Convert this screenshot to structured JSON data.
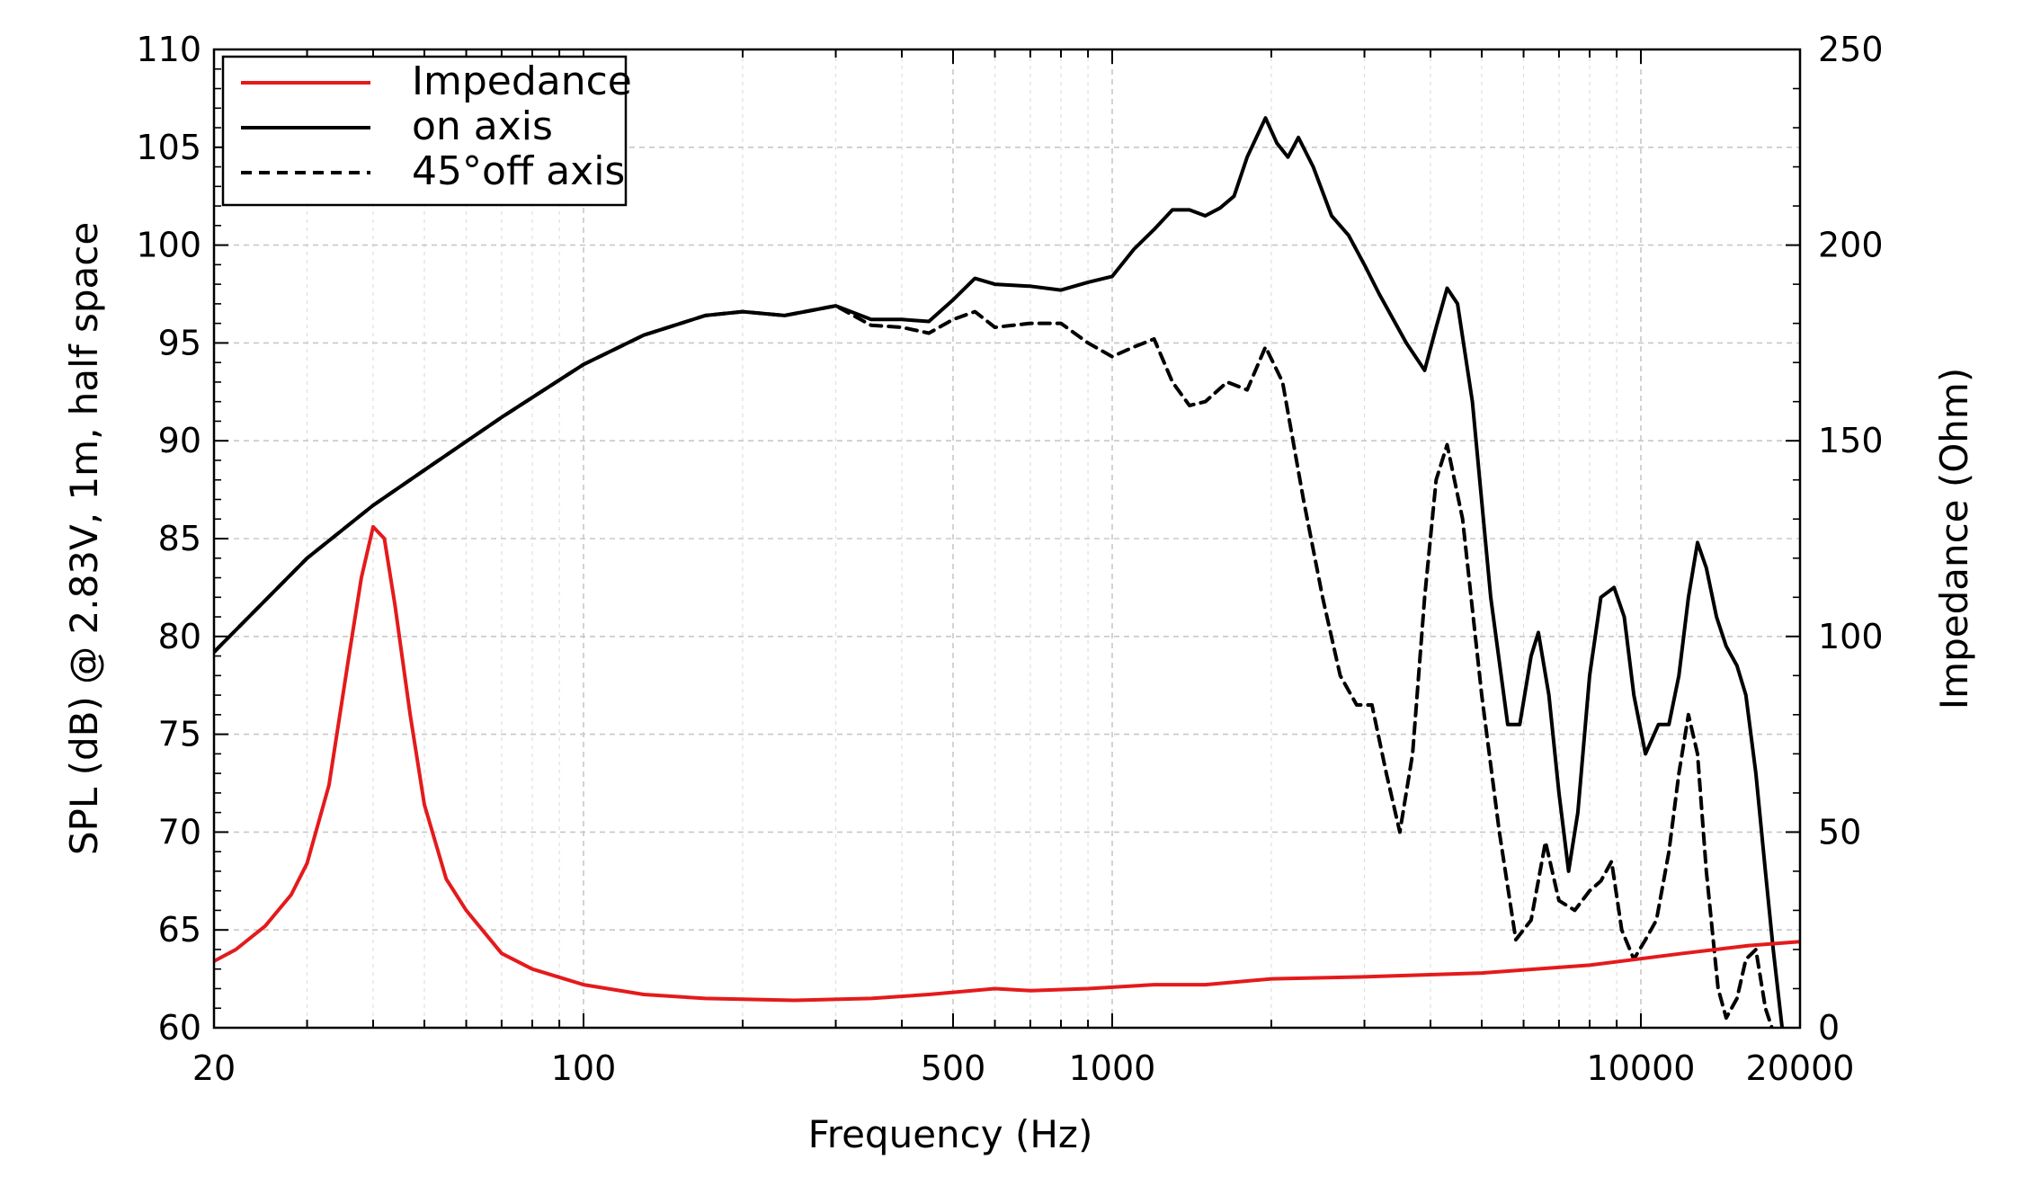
{
  "chart_data": {
    "type": "line",
    "title": "",
    "xlabel": "Frequency (Hz)",
    "ylabel_left": "SPL (dB) @ 2.83V, 1m, half space",
    "ylabel_right": "Impedance (Ohm)",
    "x_scale": "log",
    "xlim": [
      20,
      20000
    ],
    "ylim_left": [
      60,
      110
    ],
    "ylim_right": [
      0,
      250
    ],
    "x_ticks": [
      20,
      100,
      500,
      1000,
      10000,
      20000
    ],
    "x_tick_labels": [
      "20",
      "100",
      "500",
      "1000",
      "10000",
      "20000"
    ],
    "y_ticks_left": [
      60,
      65,
      70,
      75,
      80,
      85,
      90,
      95,
      100,
      105,
      110
    ],
    "y_tick_labels_left": [
      "60",
      "65",
      "70",
      "75",
      "80",
      "85",
      "90",
      "95",
      "100",
      "105",
      "110"
    ],
    "y_ticks_right": [
      0,
      50,
      100,
      150,
      200,
      250
    ],
    "y_tick_labels_right": [
      "0",
      "50",
      "100",
      "150",
      "200",
      "250"
    ],
    "grid": true,
    "legend_position": "top-left",
    "series": [
      {
        "name": "Impedance",
        "axis": "right",
        "color": "#e41a1c",
        "style": "solid",
        "points": [
          [
            20,
            17
          ],
          [
            22,
            20
          ],
          [
            25,
            26
          ],
          [
            28,
            34
          ],
          [
            30,
            42
          ],
          [
            33,
            62
          ],
          [
            36,
            95
          ],
          [
            38,
            115
          ],
          [
            40,
            128
          ],
          [
            42,
            125
          ],
          [
            44,
            108
          ],
          [
            47,
            80
          ],
          [
            50,
            57
          ],
          [
            55,
            38
          ],
          [
            60,
            30
          ],
          [
            70,
            19
          ],
          [
            80,
            15
          ],
          [
            100,
            11
          ],
          [
            130,
            8.5
          ],
          [
            170,
            7.5
          ],
          [
            250,
            7
          ],
          [
            350,
            7.5
          ],
          [
            450,
            8.5
          ],
          [
            600,
            10
          ],
          [
            700,
            9.5
          ],
          [
            900,
            10
          ],
          [
            1200,
            11
          ],
          [
            1500,
            11
          ],
          [
            2000,
            12.5
          ],
          [
            3000,
            13
          ],
          [
            5000,
            14
          ],
          [
            8000,
            16
          ],
          [
            12000,
            19
          ],
          [
            16000,
            21
          ],
          [
            20000,
            22
          ]
        ]
      },
      {
        "name": "on axis",
        "axis": "left",
        "color": "#000000",
        "style": "solid",
        "points": [
          [
            20,
            79.2
          ],
          [
            30,
            84
          ],
          [
            40,
            86.7
          ],
          [
            50,
            88.5
          ],
          [
            70,
            91.2
          ],
          [
            100,
            93.9
          ],
          [
            130,
            95.4
          ],
          [
            170,
            96.4
          ],
          [
            200,
            96.6
          ],
          [
            240,
            96.4
          ],
          [
            300,
            96.9
          ],
          [
            350,
            96.2
          ],
          [
            400,
            96.2
          ],
          [
            450,
            96.1
          ],
          [
            500,
            97.2
          ],
          [
            550,
            98.3
          ],
          [
            600,
            98.0
          ],
          [
            700,
            97.9
          ],
          [
            800,
            97.7
          ],
          [
            900,
            98.1
          ],
          [
            1000,
            98.4
          ],
          [
            1100,
            99.8
          ],
          [
            1200,
            100.8
          ],
          [
            1300,
            101.8
          ],
          [
            1400,
            101.8
          ],
          [
            1500,
            101.5
          ],
          [
            1600,
            101.9
          ],
          [
            1700,
            102.5
          ],
          [
            1800,
            104.5
          ],
          [
            1950,
            106.5
          ],
          [
            2050,
            105.2
          ],
          [
            2150,
            104.5
          ],
          [
            2250,
            105.5
          ],
          [
            2400,
            104.0
          ],
          [
            2600,
            101.5
          ],
          [
            2800,
            100.5
          ],
          [
            3000,
            99.0
          ],
          [
            3200,
            97.5
          ],
          [
            3600,
            95.0
          ],
          [
            3900,
            93.6
          ],
          [
            4100,
            95.8
          ],
          [
            4300,
            97.8
          ],
          [
            4500,
            97.0
          ],
          [
            4800,
            92.0
          ],
          [
            5200,
            82.0
          ],
          [
            5600,
            75.5
          ],
          [
            5900,
            75.5
          ],
          [
            6200,
            79.0
          ],
          [
            6400,
            80.2
          ],
          [
            6700,
            77.0
          ],
          [
            7000,
            72.0
          ],
          [
            7300,
            68.0
          ],
          [
            7600,
            71.0
          ],
          [
            8000,
            78.0
          ],
          [
            8400,
            82.0
          ],
          [
            8900,
            82.5
          ],
          [
            9300,
            81.0
          ],
          [
            9700,
            77.0
          ],
          [
            10200,
            74.0
          ],
          [
            10800,
            75.5
          ],
          [
            11300,
            75.5
          ],
          [
            11800,
            78.0
          ],
          [
            12300,
            82.0
          ],
          [
            12800,
            84.8
          ],
          [
            13300,
            83.5
          ],
          [
            13900,
            81.0
          ],
          [
            14500,
            79.5
          ],
          [
            15200,
            78.5
          ],
          [
            15800,
            77.0
          ],
          [
            16500,
            73.0
          ],
          [
            17200,
            68.0
          ],
          [
            17800,
            64.0
          ],
          [
            18500,
            60.0
          ]
        ]
      },
      {
        "name": "45°off axis",
        "axis": "left",
        "color": "#000000",
        "style": "dashed",
        "points": [
          [
            20,
            79.2
          ],
          [
            30,
            84
          ],
          [
            40,
            86.7
          ],
          [
            50,
            88.5
          ],
          [
            70,
            91.2
          ],
          [
            100,
            93.9
          ],
          [
            130,
            95.4
          ],
          [
            170,
            96.4
          ],
          [
            200,
            96.6
          ],
          [
            240,
            96.4
          ],
          [
            300,
            96.9
          ],
          [
            350,
            95.9
          ],
          [
            400,
            95.8
          ],
          [
            450,
            95.5
          ],
          [
            500,
            96.2
          ],
          [
            550,
            96.6
          ],
          [
            600,
            95.8
          ],
          [
            700,
            96.0
          ],
          [
            800,
            96.0
          ],
          [
            900,
            95.0
          ],
          [
            1000,
            94.3
          ],
          [
            1100,
            94.8
          ],
          [
            1200,
            95.2
          ],
          [
            1300,
            93.0
          ],
          [
            1400,
            91.8
          ],
          [
            1500,
            92.0
          ],
          [
            1650,
            93.0
          ],
          [
            1800,
            92.6
          ],
          [
            1950,
            94.8
          ],
          [
            2100,
            93.0
          ],
          [
            2300,
            87.0
          ],
          [
            2500,
            82.0
          ],
          [
            2700,
            78.0
          ],
          [
            2900,
            76.5
          ],
          [
            3100,
            76.5
          ],
          [
            3300,
            73.0
          ],
          [
            3500,
            70.0
          ],
          [
            3700,
            74.0
          ],
          [
            3900,
            82.0
          ],
          [
            4100,
            88.0
          ],
          [
            4300,
            89.8
          ],
          [
            4600,
            86.0
          ],
          [
            5000,
            77.0
          ],
          [
            5400,
            70.0
          ],
          [
            5800,
            64.5
          ],
          [
            6200,
            65.5
          ],
          [
            6600,
            69.5
          ],
          [
            7000,
            66.5
          ],
          [
            7500,
            66.0
          ],
          [
            8000,
            67.0
          ],
          [
            8400,
            67.5
          ],
          [
            8800,
            68.5
          ],
          [
            9200,
            65.0
          ],
          [
            9700,
            63.5
          ],
          [
            10200,
            64.5
          ],
          [
            10700,
            65.5
          ],
          [
            11300,
            69.0
          ],
          [
            11800,
            73.0
          ],
          [
            12300,
            76.0
          ],
          [
            12800,
            74.0
          ],
          [
            13300,
            68.0
          ],
          [
            14000,
            62.0
          ],
          [
            14500,
            60.5
          ],
          [
            15200,
            61.5
          ],
          [
            15800,
            63.5
          ],
          [
            16500,
            64.0
          ],
          [
            17200,
            61.0
          ],
          [
            17800,
            59.8
          ]
        ]
      }
    ]
  }
}
